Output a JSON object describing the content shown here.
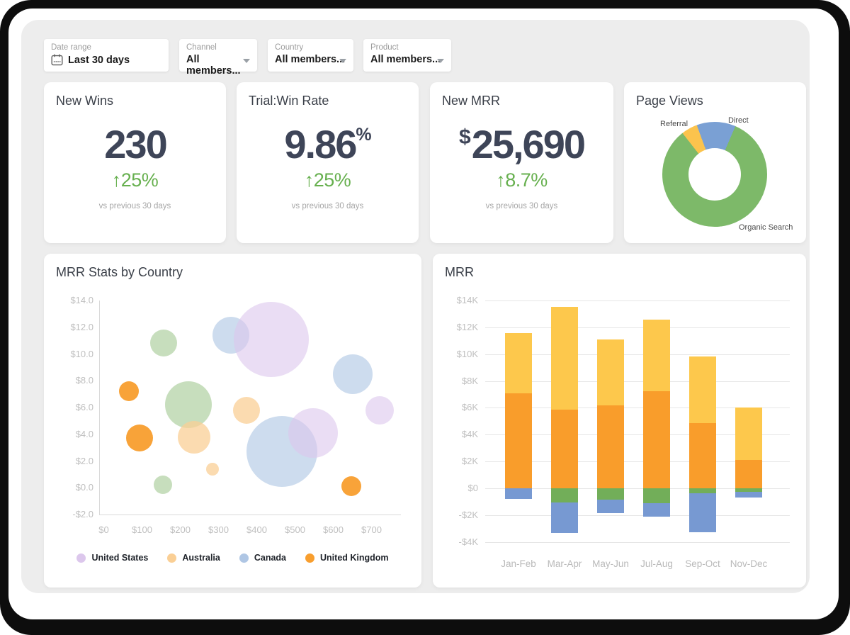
{
  "filters": [
    {
      "label": "Date range",
      "value": "Last 30 days",
      "icon": "calendar"
    },
    {
      "label": "Channel",
      "value": "All members...",
      "icon": "chevron-down"
    },
    {
      "label": "Country",
      "value": "All members...",
      "icon": "chevron-down"
    },
    {
      "label": "Product",
      "value": "All members...",
      "icon": "chevron-down"
    }
  ],
  "kpis": [
    {
      "title": "New Wins",
      "prefix": "",
      "value": "230",
      "suffix": "",
      "change": "↑25%",
      "caption": "vs previous 30 days"
    },
    {
      "title": "Trial:Win Rate",
      "prefix": "",
      "value": "9.86",
      "suffix": "%",
      "change": "↑25%",
      "caption": "vs previous 30 days"
    },
    {
      "title": "New MRR",
      "prefix": "$",
      "value": "25,690",
      "suffix": "",
      "change": "↑8.7%",
      "caption": "vs previous 30 days"
    }
  ],
  "colors": {
    "kpi_value": "#3E4558",
    "kpi_change_green": "#67B04F",
    "card_bg": "#FFFFFF",
    "dashboard_bg": "#EDEDED",
    "frame": "#0D0D0D"
  },
  "chart_data": [
    {
      "type": "pie",
      "title": "Page Views",
      "donut": true,
      "start_angle": -38,
      "slices": [
        {
          "label": "Referral",
          "value": 5,
          "color": "#FBC34D"
        },
        {
          "label": "Direct",
          "value": 12,
          "color": "#7AA0D4"
        },
        {
          "label": "Organic Search",
          "value": 83,
          "color": "#7DB969"
        }
      ]
    },
    {
      "type": "scatter",
      "title": "MRR Stats by Country",
      "xlim": [
        -12,
        775
      ],
      "ylim": [
        -2,
        14
      ],
      "x_ticks": {
        "labels": [
          "$0",
          "$100",
          "$200",
          "$300",
          "$400",
          "$500",
          "$600",
          "$700"
        ],
        "values": [
          0,
          100,
          200,
          300,
          400,
          500,
          600,
          700
        ]
      },
      "y_ticks": {
        "labels": [
          "$14.0",
          "$12.0",
          "$10.0",
          "$8.0",
          "$6.0",
          "$4.0",
          "$2.0",
          "$0.0",
          "-$2.0"
        ],
        "values": [
          14,
          12,
          10,
          8,
          6,
          4,
          2,
          0,
          -2
        ]
      },
      "legend": [
        "United States",
        "Australia",
        "Canada",
        "United Kingdom"
      ],
      "series": [
        {
          "name": "United States",
          "color": "#DCC7EC",
          "points": [
            {
              "x": 437,
              "y": 11.1,
              "r": 53
            },
            {
              "x": 546,
              "y": 4.1,
              "r": 35
            },
            {
              "x": 719,
              "y": 5.8,
              "r": 20
            }
          ]
        },
        {
          "name": "Australia",
          "color": "#FACF95",
          "points": [
            {
              "x": 372,
              "y": 5.8,
              "r": 19
            },
            {
              "x": 235,
              "y": 3.8,
              "r": 23
            },
            {
              "x": 282,
              "y": 1.4,
              "r": 9
            }
          ]
        },
        {
          "name": "Canada",
          "color": "#AFC6E4",
          "points": [
            {
              "x": 330,
              "y": 11.4,
              "r": 26
            },
            {
              "x": 650,
              "y": 8.5,
              "r": 28
            },
            {
              "x": 464,
              "y": 2.7,
              "r": 50
            }
          ]
        },
        {
          "name": "United Kingdom",
          "color": "#F89E2E",
          "points": [
            {
              "x": 64,
              "y": 7.2,
              "r": 14
            },
            {
              "x": 91,
              "y": 3.7,
              "r": 19
            },
            {
              "x": 645,
              "y": 0.1,
              "r": 14
            }
          ]
        },
        {
          "name": "",
          "color": "#A9CD9A",
          "in_legend": false,
          "points": [
            {
              "x": 155,
              "y": 10.8,
              "r": 19
            },
            {
              "x": 219,
              "y": 6.2,
              "r": 33
            },
            {
              "x": 153,
              "y": 0.2,
              "r": 13
            }
          ]
        }
      ]
    },
    {
      "type": "bar",
      "title": "MRR",
      "stacked": true,
      "ylim": [
        -4.5,
        14
      ],
      "categories": [
        "Jan-Feb",
        "Mar-Apr",
        "May-Jun",
        "Jul-Aug",
        "Sep-Oct",
        "Nov-Dec"
      ],
      "y_ticks": {
        "labels": [
          "$14K",
          "$12K",
          "$10K",
          "$8K",
          "$6K",
          "$4K",
          "$2K",
          "$0",
          "-$2K",
          "-$4K"
        ],
        "values": [
          14,
          12,
          10,
          8,
          6,
          4,
          2,
          0,
          -2,
          -4
        ]
      },
      "series": [
        {
          "name": "upper-yellow",
          "color": "#FDC84C",
          "values": [
            4.45,
            7.7,
            4.9,
            5.3,
            5.0,
            3.9
          ]
        },
        {
          "name": "lower-orange",
          "color": "#F99D2B",
          "values": [
            7.1,
            5.85,
            6.2,
            7.25,
            4.85,
            2.1
          ]
        },
        {
          "name": "neg-green",
          "color": "#72AE59",
          "values": [
            0,
            -1.05,
            -0.85,
            -1.1,
            -0.4,
            -0.25
          ]
        },
        {
          "name": "neg-blue",
          "color": "#7799D2",
          "values": [
            -0.8,
            -2.3,
            -1.0,
            -1.0,
            -2.9,
            -0.45
          ]
        }
      ]
    }
  ]
}
